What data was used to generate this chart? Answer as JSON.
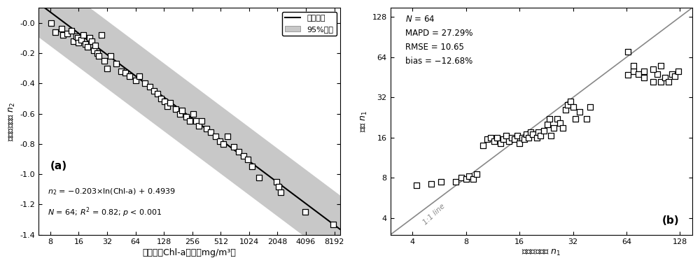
{
  "panel_a": {
    "title": "(a)",
    "xlabel": "实测表层Chl-a浓度（mg/m³）",
    "ylabel": "实测数据拟合 $n_2$",
    "xticks": [
      8,
      16,
      32,
      64,
      128,
      256,
      512,
      1024,
      2048,
      4096,
      8192
    ],
    "xtick_labels": [
      "8",
      "16",
      "32",
      "64",
      "128",
      "256",
      "512",
      "1024",
      "2048",
      "4096",
      "8192"
    ],
    "ylim": [
      -1.4,
      0.1
    ],
    "xlim_log": [
      6,
      9500
    ],
    "fit_color": "#000000",
    "band_color": "#c8c8c8",
    "marker_color": "#ffffff",
    "marker_edge": "#000000",
    "equation": "$n_2$ = −0.203×ln(Chl-a) + 0.4939",
    "stats": "$N$ = 64; $R^2$ = 0.82; $p$ < 0.001",
    "legend_fit": "拟合曲线",
    "legend_band": "95%预测",
    "scatter_x": [
      8.1,
      9.0,
      10.5,
      11.0,
      12.0,
      13.5,
      14.0,
      15.0,
      15.5,
      16.0,
      17.0,
      18.0,
      19.0,
      20.0,
      21.0,
      22.0,
      23.0,
      24.0,
      25.0,
      26.0,
      28.0,
      30.0,
      32.0,
      35.0,
      40.0,
      45.0,
      50.0,
      55.0,
      65.0,
      70.0,
      80.0,
      90.0,
      100.0,
      110.0,
      120.0,
      130.0,
      140.0,
      150.0,
      170.0,
      190.0,
      200.0,
      220.0,
      240.0,
      260.0,
      280.0,
      300.0,
      320.0,
      360.0,
      400.0,
      450.0,
      500.0,
      550.0,
      600.0,
      700.0,
      800.0,
      900.0,
      1000.0,
      1100.0,
      1300.0,
      2000.0,
      2100.0,
      2200.0,
      4000.0,
      8000.0
    ],
    "scatter_y": [
      0.0,
      -0.06,
      -0.04,
      -0.08,
      -0.07,
      -0.05,
      -0.12,
      -0.09,
      -0.1,
      -0.13,
      -0.11,
      -0.08,
      -0.14,
      -0.16,
      -0.1,
      -0.12,
      -0.18,
      -0.15,
      -0.2,
      -0.22,
      -0.08,
      -0.25,
      -0.3,
      -0.22,
      -0.27,
      -0.32,
      -0.33,
      -0.35,
      -0.38,
      -0.35,
      -0.4,
      -0.42,
      -0.45,
      -0.47,
      -0.5,
      -0.52,
      -0.55,
      -0.53,
      -0.57,
      -0.6,
      -0.58,
      -0.62,
      -0.65,
      -0.6,
      -0.65,
      -0.68,
      -0.65,
      -0.7,
      -0.72,
      -0.75,
      -0.78,
      -0.8,
      -0.75,
      -0.82,
      -0.85,
      -0.88,
      -0.9,
      -0.95,
      -1.02,
      -1.05,
      -1.08,
      -1.12,
      -1.25,
      -1.33
    ]
  },
  "panel_b": {
    "title": "(b)",
    "xlabel": "实测数据拟合 $n_1$",
    "ylabel": "估算 $n_1$",
    "xticks": [
      4,
      8,
      16,
      32,
      64,
      128
    ],
    "yticks": [
      4,
      8,
      16,
      32,
      64,
      128
    ],
    "tick_labels": [
      "4",
      "8",
      "16",
      "32",
      "64",
      "128"
    ],
    "xlim_log": [
      3.0,
      150.0
    ],
    "ylim_log": [
      3.0,
      150.0
    ],
    "line_color": "#888888",
    "marker_color": "#ffffff",
    "marker_edge": "#000000",
    "stats_text": "N = 64\nMAPD = 27.29%\nRMSE = 10.65\nbias = -12.68%",
    "one_one_label": "1:1 line",
    "scatter_x": [
      4.2,
      5.1,
      5.8,
      7.0,
      7.5,
      8.0,
      8.3,
      8.8,
      9.2,
      10.0,
      10.5,
      11.0,
      11.5,
      12.0,
      12.5,
      13.0,
      13.5,
      14.0,
      14.5,
      15.0,
      15.5,
      16.0,
      16.5,
      17.0,
      17.5,
      18.0,
      18.5,
      19.0,
      20.0,
      20.5,
      21.0,
      22.0,
      23.0,
      23.5,
      24.0,
      25.0,
      26.0,
      27.0,
      28.0,
      29.0,
      30.0,
      31.0,
      32.0,
      33.0,
      35.0,
      38.0,
      40.0,
      65.0,
      70.0,
      75.0,
      80.0,
      90.0,
      95.0,
      100.0,
      105.0,
      110.0,
      115.0,
      120.0,
      125.0,
      65.0,
      70.0,
      80.0,
      90.0,
      100.0
    ],
    "scatter_y": [
      7.0,
      7.2,
      7.5,
      7.5,
      8.0,
      7.8,
      8.2,
      7.8,
      8.5,
      14.0,
      15.5,
      16.0,
      15.0,
      16.0,
      14.5,
      15.5,
      16.5,
      15.0,
      16.0,
      15.5,
      16.5,
      14.5,
      16.0,
      15.5,
      17.0,
      16.0,
      17.5,
      17.0,
      16.0,
      17.5,
      16.5,
      18.0,
      20.0,
      22.0,
      16.5,
      19.0,
      22.0,
      20.5,
      19.0,
      26.0,
      28.0,
      30.0,
      27.0,
      22.0,
      25.0,
      22.0,
      27.0,
      70.0,
      50.0,
      48.0,
      45.0,
      42.0,
      48.0,
      42.0,
      45.0,
      42.0,
      48.0,
      46.0,
      50.0,
      47.0,
      55.0,
      50.0,
      52.0,
      55.0
    ]
  }
}
